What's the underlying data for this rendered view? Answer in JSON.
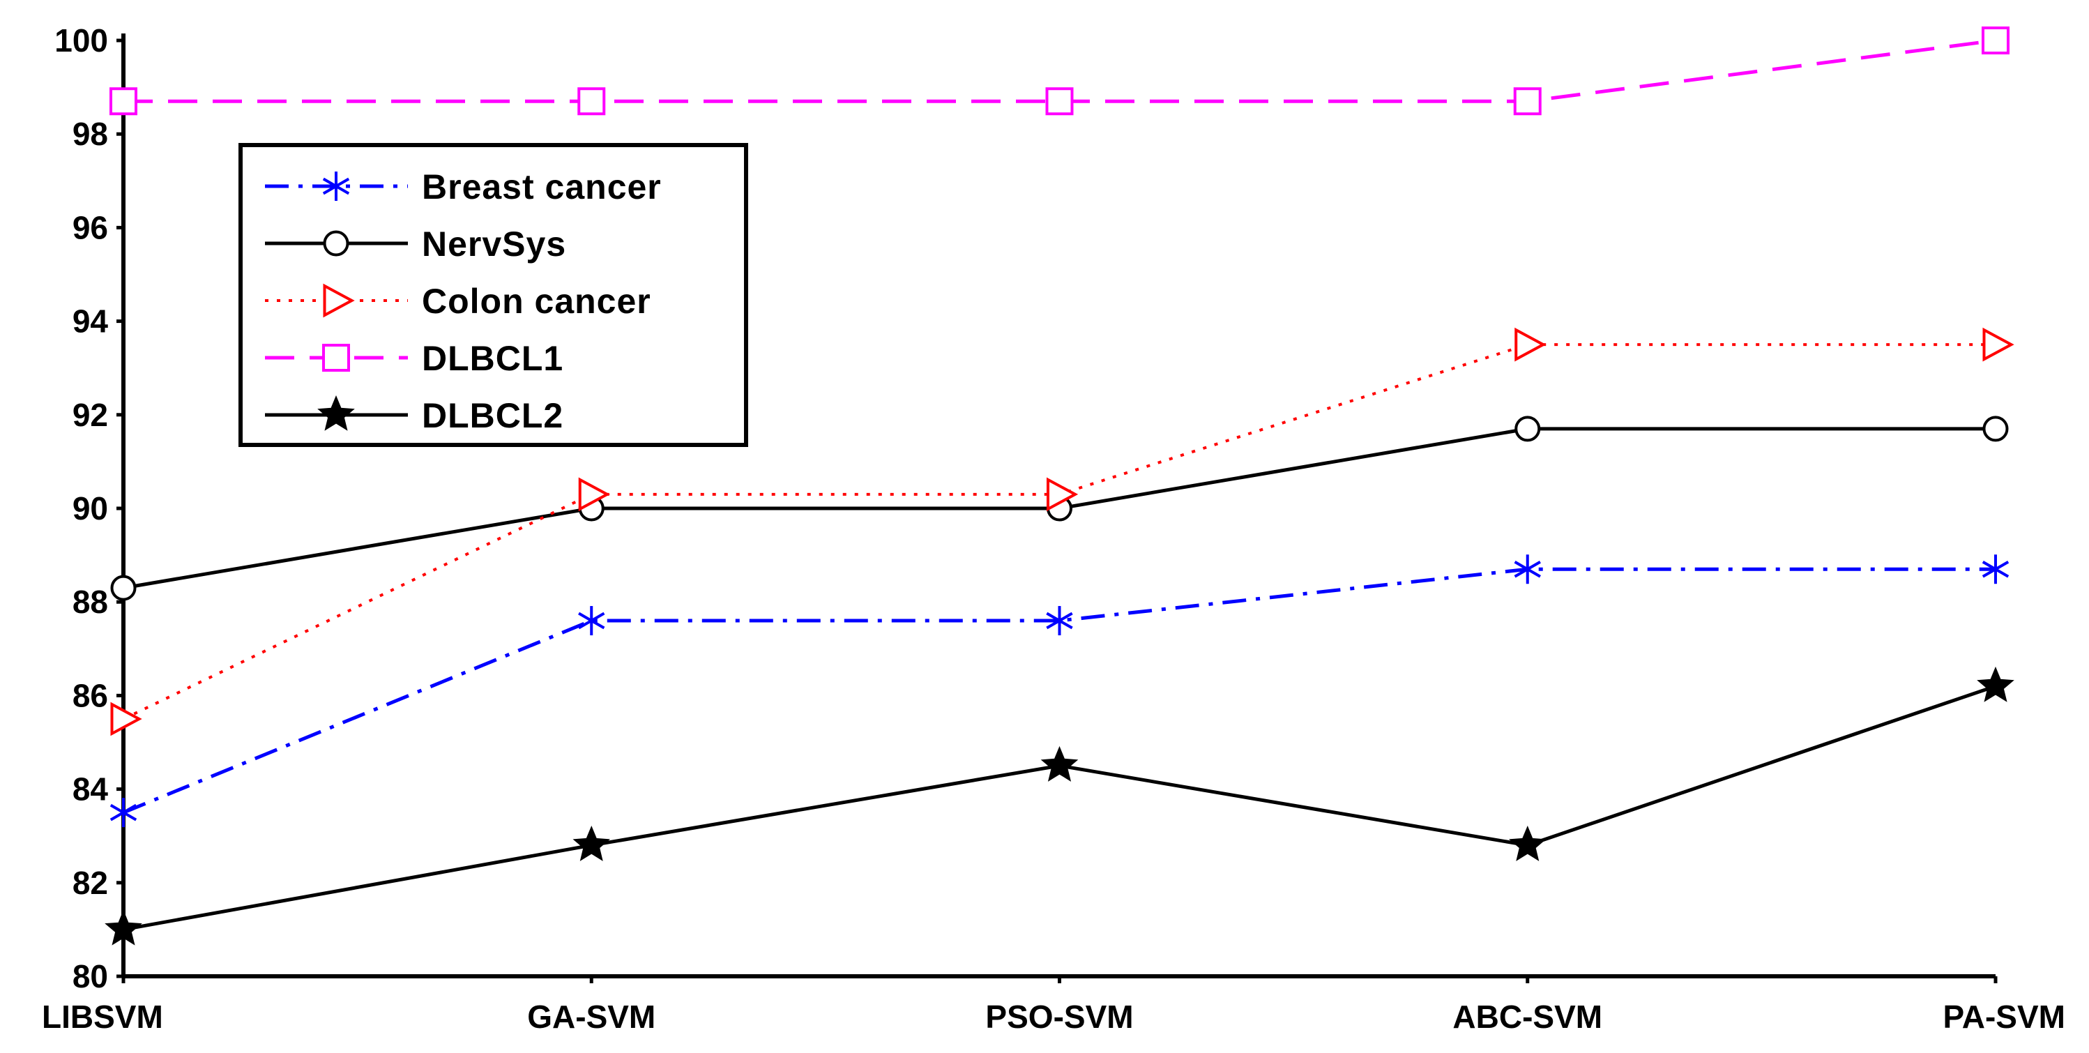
{
  "chart_data": {
    "type": "line",
    "title": "",
    "xlabel": "",
    "ylabel": "",
    "ylim": [
      80,
      100
    ],
    "yticks": [
      "80",
      "82",
      "84",
      "86",
      "88",
      "90",
      "92",
      "94",
      "96",
      "98",
      "100"
    ],
    "categories": [
      "LIBSVM",
      "GA-SVM",
      "PSO-SVM",
      "ABC-SVM",
      "PA-SVM"
    ],
    "grid": false,
    "legend_position": "top-left",
    "series": [
      {
        "name": "Breast cancer",
        "values": [
          83.5,
          87.6,
          87.6,
          88.7,
          88.7
        ],
        "color": "#0000ff",
        "dash": "dash-dot",
        "marker": "asterisk"
      },
      {
        "name": "NervSys",
        "values": [
          88.3,
          90.0,
          90.0,
          91.7,
          91.7
        ],
        "color": "#000000",
        "dash": "solid",
        "marker": "circle"
      },
      {
        "name": "Colon cancer",
        "values": [
          85.5,
          90.3,
          90.3,
          93.5,
          93.5
        ],
        "color": "#ff0000",
        "dash": "dotted",
        "marker": "triangle-right"
      },
      {
        "name": "DLBCL1",
        "values": [
          98.7,
          98.7,
          98.7,
          98.7,
          100.0
        ],
        "color": "#ff00ff",
        "dash": "dashed",
        "marker": "square"
      },
      {
        "name": "DLBCL2",
        "values": [
          81.0,
          82.8,
          84.5,
          82.8,
          86.2
        ],
        "color": "#000000",
        "dash": "solid",
        "marker": "star"
      }
    ]
  }
}
